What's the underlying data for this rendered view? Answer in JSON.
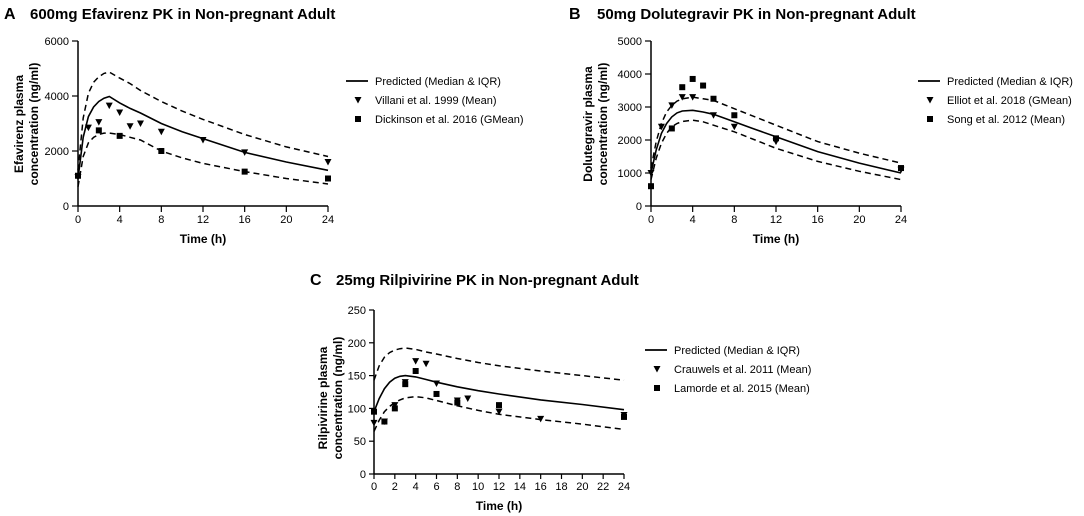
{
  "chart_data": [
    {
      "type": "line",
      "panel": "A",
      "title": "600mg Efavirenz PK in Non-pregnant Adult",
      "xlabel": "Time (h)",
      "ylabel": [
        "Efavirenz plasma",
        "concentration (ng/ml)"
      ],
      "xlim": [
        0,
        24
      ],
      "ylim": [
        0,
        6000
      ],
      "xticks": [
        0,
        4,
        8,
        12,
        16,
        20,
        24
      ],
      "yticks": [
        0,
        2000,
        4000,
        6000
      ],
      "legend_position": "right",
      "predicted": {
        "name": "Predicted (Median & IQR)",
        "x": [
          0,
          0.5,
          1,
          1.5,
          2,
          2.5,
          3,
          4,
          5,
          6,
          8,
          10,
          12,
          16,
          20,
          24
        ],
        "median": [
          1000,
          2500,
          3250,
          3600,
          3800,
          3920,
          3980,
          3750,
          3550,
          3380,
          3000,
          2700,
          2450,
          1950,
          1600,
          1300
        ],
        "upper": [
          1300,
          3200,
          4100,
          4500,
          4700,
          4820,
          4870,
          4650,
          4450,
          4200,
          3800,
          3450,
          3150,
          2600,
          2150,
          1800
        ],
        "lower": [
          700,
          1800,
          2300,
          2500,
          2600,
          2650,
          2650,
          2600,
          2500,
          2400,
          2000,
          1750,
          1550,
          1250,
          1000,
          800
        ]
      },
      "series": [
        {
          "name": "Villani et al. 1999 (Mean)",
          "marker": "triangle-down",
          "x": [
            0,
            1,
            2,
            3,
            4,
            5,
            6,
            8,
            12,
            16,
            24
          ],
          "values": [
            1050,
            2850,
            3050,
            3650,
            3400,
            2900,
            3000,
            2700,
            2400,
            1950,
            1600
          ]
        },
        {
          "name": "Dickinson et al. 2016 (GMean)",
          "marker": "square",
          "x": [
            0,
            2,
            4,
            8,
            16,
            24
          ],
          "values": [
            1100,
            2750,
            2550,
            2000,
            1250,
            1000
          ]
        }
      ]
    },
    {
      "type": "line",
      "panel": "B",
      "title": "50mg Dolutegravir PK in Non-pregnant Adult",
      "xlabel": "Time (h)",
      "ylabel": [
        "Dolutegravir plasma",
        "concentration (ng/ml)"
      ],
      "xlim": [
        0,
        24
      ],
      "ylim": [
        0,
        5000
      ],
      "xticks": [
        0,
        4,
        8,
        12,
        16,
        20,
        24
      ],
      "yticks": [
        0,
        1000,
        2000,
        3000,
        4000,
        5000
      ],
      "legend_position": "right",
      "predicted": {
        "name": "Predicted (Median & IQR)",
        "x": [
          0,
          0.5,
          1,
          1.5,
          2,
          2.5,
          3,
          4,
          5,
          6,
          8,
          10,
          12,
          16,
          20,
          24
        ],
        "median": [
          1000,
          1700,
          2200,
          2500,
          2700,
          2820,
          2880,
          2900,
          2850,
          2780,
          2550,
          2320,
          2100,
          1650,
          1300,
          1000
        ],
        "upper": [
          1150,
          1950,
          2500,
          2850,
          3050,
          3180,
          3250,
          3300,
          3250,
          3200,
          2950,
          2700,
          2450,
          1950,
          1600,
          1300
        ],
        "lower": [
          800,
          1450,
          1900,
          2200,
          2400,
          2500,
          2560,
          2600,
          2550,
          2450,
          2250,
          2000,
          1750,
          1350,
          1050,
          800
        ]
      },
      "series": [
        {
          "name": "Elliot et al. 2018 (GMean)",
          "marker": "triangle-down",
          "x": [
            0,
            1,
            2,
            3,
            4,
            6,
            8,
            12,
            24
          ],
          "values": [
            1000,
            2400,
            3050,
            3300,
            3300,
            2750,
            2400,
            1950,
            1100
          ]
        },
        {
          "name": "Song et al. 2012 (Mean)",
          "marker": "square",
          "x": [
            0,
            2,
            3,
            4,
            5,
            6,
            8,
            12,
            24
          ],
          "values": [
            600,
            2350,
            3600,
            3850,
            3650,
            3250,
            2750,
            2050,
            1150
          ]
        }
      ]
    },
    {
      "type": "line",
      "panel": "C",
      "title": "25mg Rilpivirine PK in Non-pregnant Adult",
      "xlabel": "Time (h)",
      "ylabel": [
        "Rilpivirine plasma",
        "concentration (ng/ml)"
      ],
      "xlim": [
        0,
        24
      ],
      "ylim": [
        0,
        250
      ],
      "xticks": [
        0,
        2,
        4,
        6,
        8,
        10,
        12,
        14,
        16,
        18,
        20,
        22,
        24
      ],
      "yticks": [
        0,
        50,
        100,
        150,
        200,
        250
      ],
      "legend_position": "right",
      "predicted": {
        "name": "Predicted (Median & IQR)",
        "x": [
          0,
          0.5,
          1,
          1.5,
          2,
          2.5,
          3,
          4,
          5,
          6,
          8,
          10,
          12,
          16,
          20,
          24
        ],
        "median": [
          95,
          115,
          130,
          140,
          146,
          149,
          150,
          148,
          144,
          140,
          133,
          127,
          122,
          113,
          106,
          98
        ],
        "upper": [
          143,
          165,
          178,
          185,
          189,
          191,
          192,
          190,
          186,
          183,
          176,
          170,
          165,
          157,
          150,
          143
        ],
        "lower": [
          65,
          82,
          95,
          103,
          109,
          113,
          116,
          118,
          116,
          112,
          104,
          97,
          91,
          83,
          76,
          68
        ]
      },
      "series": [
        {
          "name": "Crauwels et al. 2011 (Mean)",
          "marker": "triangle-down",
          "x": [
            0,
            1,
            2,
            3,
            4,
            5,
            6,
            8,
            9,
            12,
            16,
            24
          ],
          "values": [
            78,
            80,
            105,
            140,
            172,
            168,
            138,
            112,
            115,
            95,
            84,
            90
          ]
        },
        {
          "name": "Lamorde et al. 2015 (Mean)",
          "marker": "square",
          "x": [
            0,
            1,
            2,
            3,
            4,
            6,
            8,
            12,
            24
          ],
          "values": [
            95,
            80,
            100,
            137,
            157,
            122,
            109,
            105,
            87
          ]
        }
      ]
    }
  ]
}
